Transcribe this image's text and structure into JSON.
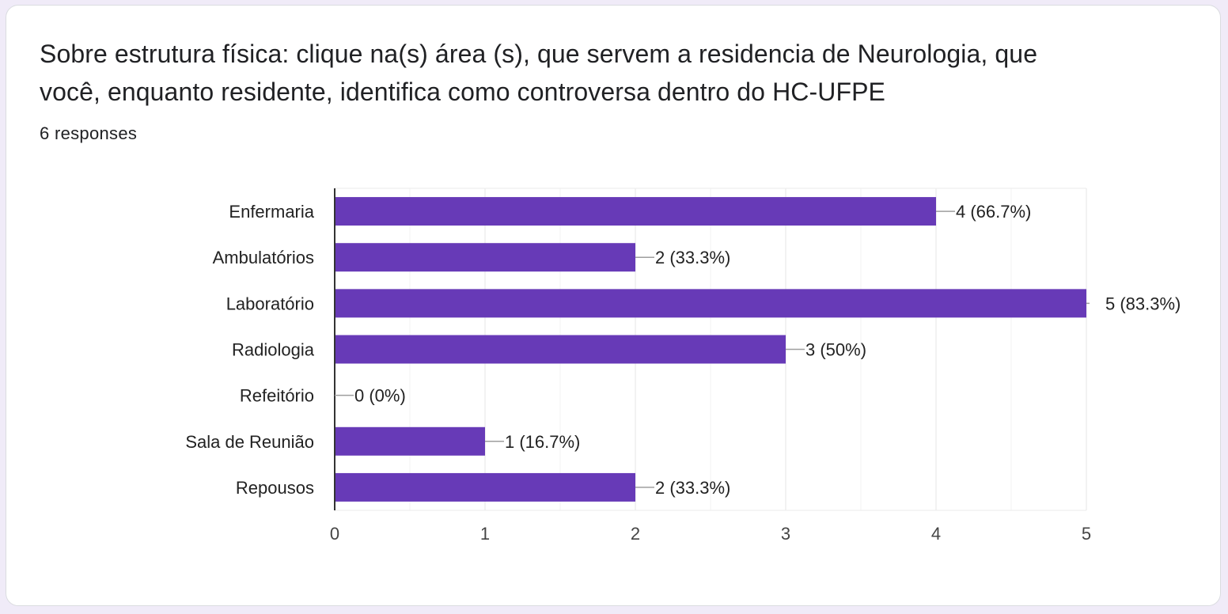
{
  "question": {
    "title": "Sobre estrutura física: clique na(s) área (s), que servem a residencia de Neurologia, que você, enquanto residente, identifica como controversa dentro do HC-UFPE",
    "responses": "6 responses"
  },
  "chart_data": {
    "type": "bar",
    "orientation": "horizontal",
    "categories": [
      "Enfermaria",
      "Ambulatórios",
      "Laboratório",
      "Radiologia",
      "Refeitório",
      "Sala de Reunião",
      "Repousos"
    ],
    "values": [
      4,
      2,
      5,
      3,
      0,
      1,
      2
    ],
    "data_labels": [
      "4 (66.7%)",
      "2 (33.3%)",
      "5 (83.3%)",
      "3 (50%)",
      "0 (0%)",
      "1 (16.7%)",
      "2 (33.3%)"
    ],
    "xlim": [
      0,
      5
    ],
    "x_ticks": [
      "0",
      "1",
      "2",
      "3",
      "4",
      "5"
    ],
    "title": "",
    "xlabel": "",
    "ylabel": "",
    "grid": true,
    "legend": "none",
    "bar_color": "#673ab7"
  }
}
